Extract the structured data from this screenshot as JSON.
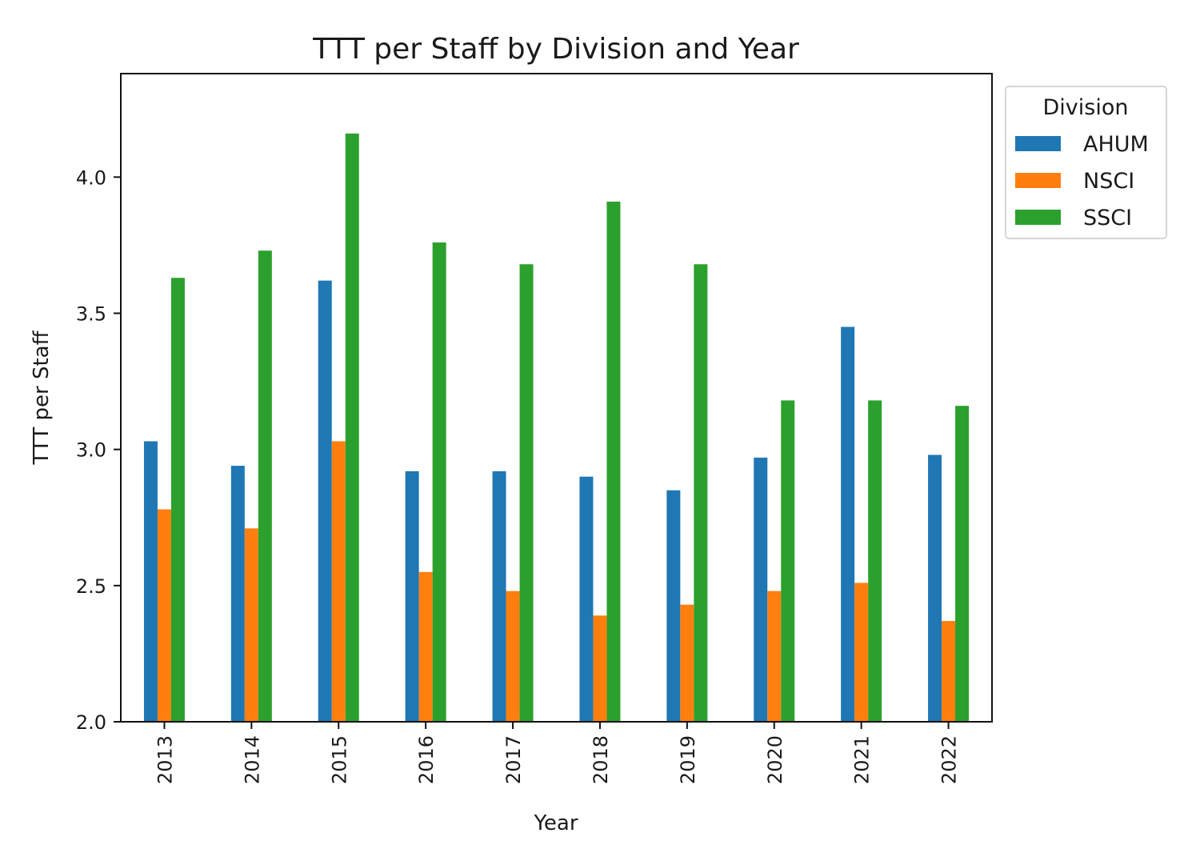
{
  "chart_data": {
    "type": "bar",
    "title": "TTT per Staff by Division and Year",
    "xlabel": "Year",
    "ylabel": "TTT per Staff",
    "categories": [
      "2013",
      "2014",
      "2015",
      "2016",
      "2017",
      "2018",
      "2019",
      "2020",
      "2021",
      "2022"
    ],
    "ylim": [
      2.0,
      4.38
    ],
    "yticks": [
      "2.0",
      "2.5",
      "3.0",
      "3.5",
      "4.0"
    ],
    "grid": false,
    "legend": {
      "title": "Division",
      "placement": "outside-top-right"
    },
    "series": [
      {
        "name": "AHUM",
        "color": "#1f77b4",
        "values": [
          3.03,
          2.94,
          3.62,
          2.92,
          2.92,
          2.9,
          2.85,
          2.97,
          3.45,
          2.98
        ]
      },
      {
        "name": "NSCI",
        "color": "#ff7f0e",
        "values": [
          2.78,
          2.71,
          3.03,
          2.55,
          2.48,
          2.39,
          2.43,
          2.48,
          2.51,
          2.37
        ]
      },
      {
        "name": "SSCI",
        "color": "#2ca02c",
        "values": [
          3.63,
          3.73,
          4.16,
          3.76,
          3.68,
          3.91,
          3.68,
          3.18,
          3.18,
          3.16
        ]
      }
    ]
  }
}
